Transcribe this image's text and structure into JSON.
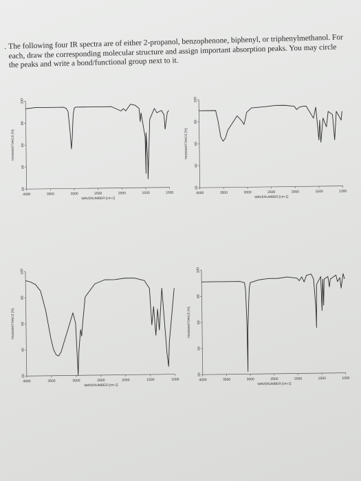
{
  "question": {
    "bullet": ".",
    "text": "The following four IR spectra are of either 2-propanol, benzophenone, biphenyl, or triphenylmethanol. For each, draw the corresponding molecular structure and assign important absorption peaks. You may circle the peaks and write a bond/functional group next to it."
  },
  "chart_data": [
    {
      "type": "line",
      "xlabel": "WAVENUMBER [cm-1]",
      "ylabel": "TRANSMITTANCE [%]",
      "xlim": [
        4000,
        1000
      ],
      "ylim": [
        20,
        100
      ],
      "xticks": [
        4000,
        3500,
        3000,
        2500,
        2000,
        1500,
        1000
      ],
      "yticks": [
        100,
        80,
        60,
        40,
        20
      ],
      "x": [
        4000,
        3800,
        3600,
        3400,
        3200,
        3150,
        3110,
        3090,
        3070,
        3050,
        3030,
        3010,
        3000,
        2980,
        2950,
        2800,
        2600,
        2400,
        2200,
        2000,
        1950,
        1900,
        1800,
        1700,
        1620,
        1600,
        1580,
        1500,
        1490,
        1480,
        1450,
        1448,
        1400,
        1300,
        1250,
        1200,
        1150,
        1100,
        1080,
        1030,
        1000
      ],
      "y": [
        93,
        94,
        94,
        94,
        94,
        93,
        90,
        80,
        70,
        56,
        66,
        82,
        88,
        93,
        94,
        94,
        94,
        94,
        94,
        90,
        92,
        90,
        96,
        95,
        92,
        80,
        88,
        66,
        33,
        70,
        45,
        28,
        82,
        92,
        88,
        89,
        90,
        86,
        73,
        88,
        90
      ]
    },
    {
      "type": "line",
      "xlabel": "WAVENUMBER [cm-1]",
      "ylabel": "TRANSMITTANCE [%]",
      "xlim": [
        4000,
        1000
      ],
      "ylim": [
        20,
        100
      ],
      "xticks": [
        4000,
        3500,
        3000,
        2500,
        2000,
        1500,
        1000
      ],
      "yticks": [
        100,
        80,
        60,
        40,
        20
      ],
      "x": [
        4000,
        3800,
        3650,
        3600,
        3550,
        3500,
        3450,
        3400,
        3200,
        3100,
        3060,
        3030,
        3000,
        2900,
        2600,
        2400,
        2200,
        2000,
        1950,
        1900,
        1810,
        1750,
        1600,
        1550,
        1490,
        1470,
        1450,
        1400,
        1330,
        1290,
        1200,
        1160,
        1120,
        1020,
        1000
      ],
      "y": [
        90,
        90,
        90,
        80,
        66,
        62,
        65,
        72,
        85,
        80,
        77,
        82,
        88,
        92,
        93,
        94,
        94,
        93,
        90,
        92,
        93,
        93,
        82,
        92,
        62,
        80,
        60,
        82,
        74,
        88,
        85,
        62,
        88,
        80,
        88
      ]
    },
    {
      "type": "line",
      "xlabel": "WAVENUMBER [cm-1]",
      "ylabel": "TRANSMITTANCE [%]",
      "xlim": [
        4000,
        1000
      ],
      "ylim": [
        20,
        100
      ],
      "xticks": [
        4000,
        3500,
        3000,
        2500,
        2000,
        1500,
        1000
      ],
      "yticks": [
        100,
        80,
        60,
        40,
        20
      ],
      "x": [
        4000,
        3900,
        3800,
        3700,
        3600,
        3500,
        3450,
        3400,
        3350,
        3300,
        3200,
        3100,
        3050,
        3000,
        2970,
        2960,
        2940,
        2900,
        2880,
        2850,
        2800,
        2600,
        2400,
        2200,
        2000,
        1800,
        1600,
        1500,
        1460,
        1420,
        1380,
        1340,
        1310,
        1250,
        1160,
        1130,
        1110,
        1000
      ],
      "y": [
        93,
        92,
        90,
        85,
        70,
        48,
        40,
        36,
        35,
        38,
        50,
        62,
        68,
        60,
        30,
        20,
        38,
        55,
        50,
        62,
        80,
        90,
        93,
        93,
        94,
        94,
        92,
        86,
        58,
        72,
        50,
        70,
        54,
        86,
        36,
        26,
        45,
        86
      ]
    },
    {
      "type": "line",
      "xlabel": "WAVENUMBER [cm-1]",
      "ylabel": "TRANSMITTANCE [%]",
      "xlim": [
        4000,
        1000
      ],
      "ylim": [
        20,
        100
      ],
      "xticks": [
        4000,
        3500,
        3000,
        2500,
        2000,
        1500,
        1000
      ],
      "yticks": [
        100,
        80,
        60,
        40,
        20
      ],
      "x": [
        4000,
        3800,
        3600,
        3400,
        3200,
        3100,
        3080,
        3060,
        3050,
        3040,
        3020,
        3000,
        2980,
        2800,
        2600,
        2400,
        2200,
        2000,
        1950,
        1900,
        1850,
        1800,
        1700,
        1650,
        1610,
        1600,
        1590,
        1500,
        1480,
        1460,
        1445,
        1430,
        1350,
        1320,
        1300,
        1180,
        1150,
        1100,
        1075,
        1030,
        1000
      ],
      "y": [
        91,
        91,
        91,
        91,
        91,
        90,
        84,
        60,
        22,
        55,
        72,
        86,
        90,
        92,
        93,
        93,
        94,
        93,
        91,
        94,
        90,
        95,
        96,
        92,
        70,
        55,
        88,
        94,
        68,
        92,
        72,
        92,
        94,
        86,
        92,
        95,
        90,
        93,
        85,
        96,
        92
      ]
    }
  ]
}
